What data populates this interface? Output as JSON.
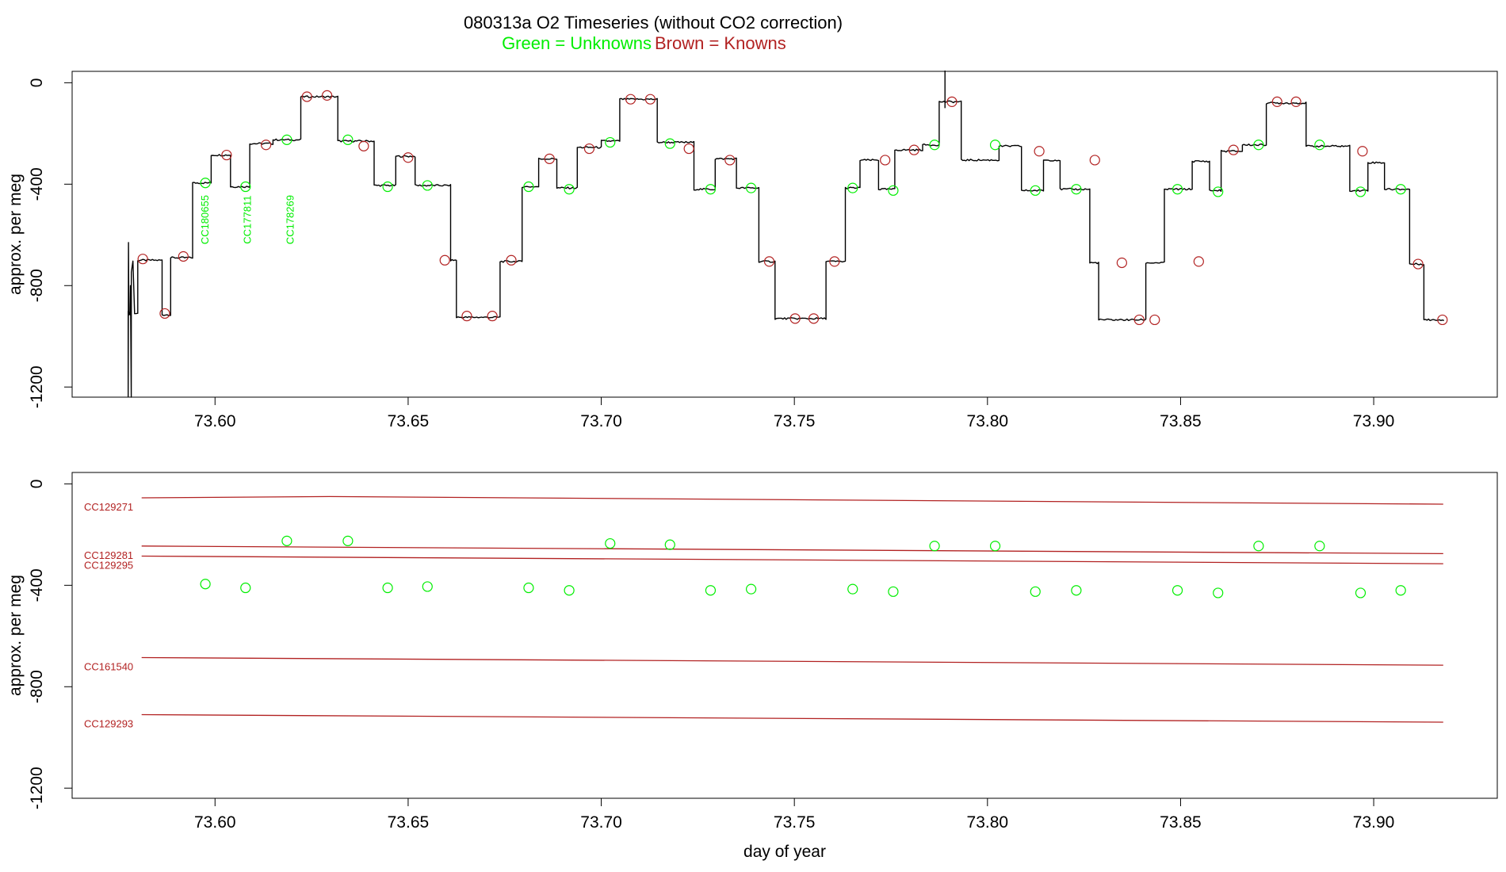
{
  "title": "080313a   O2 Timeseries (without CO2 correction)",
  "subtitle_green": "Green = Unknowns",
  "subtitle_brown": "Brown = Knowns",
  "colors": {
    "unknown": "#00ee00",
    "known": "#b22222",
    "trace": "#000000"
  },
  "chart_data": [
    {
      "type": "line",
      "panel": "top",
      "xlabel": "",
      "ylabel": "approx. per meg",
      "xlim": [
        73.563,
        73.932
      ],
      "ylim": [
        -1240,
        45
      ],
      "xticks": [
        73.6,
        73.65,
        73.7,
        73.75,
        73.8,
        73.85,
        73.9
      ],
      "xtick_labels": [
        "73.60",
        "73.65",
        "73.70",
        "73.75",
        "73.80",
        "73.85",
        "73.90"
      ],
      "yticks": [
        0,
        -400,
        -800,
        -1200
      ],
      "ytick_labels": [
        "0",
        "-400",
        "-800",
        "-1200"
      ],
      "trace": {
        "name": "O2 trace",
        "levels": [
          [
            73.5775,
            73.58,
            -910
          ],
          [
            73.58,
            73.5863,
            -700
          ],
          [
            73.5863,
            73.5885,
            -915
          ],
          [
            73.5885,
            73.5942,
            -690
          ],
          [
            73.5942,
            73.599,
            -395
          ],
          [
            73.599,
            73.604,
            -285
          ],
          [
            73.604,
            73.609,
            -410
          ],
          [
            73.609,
            73.615,
            -240
          ],
          [
            73.615,
            73.6222,
            -225
          ],
          [
            73.6222,
            73.6318,
            -55
          ],
          [
            73.6318,
            73.6412,
            -230
          ],
          [
            73.6412,
            73.6468,
            -405
          ],
          [
            73.6468,
            73.6518,
            -290
          ],
          [
            73.6518,
            73.661,
            -405
          ],
          [
            73.661,
            73.6625,
            -700
          ],
          [
            73.6625,
            73.6738,
            -925
          ],
          [
            73.6738,
            73.6795,
            -705
          ],
          [
            73.6795,
            73.6838,
            -410
          ],
          [
            73.6838,
            73.6885,
            -300
          ],
          [
            73.6885,
            73.6938,
            -415
          ],
          [
            73.6938,
            73.7,
            -255
          ],
          [
            73.7,
            73.7048,
            -230
          ],
          [
            73.7048,
            73.7145,
            -65
          ],
          [
            73.7145,
            73.724,
            -235
          ],
          [
            73.724,
            73.7295,
            -420
          ],
          [
            73.7295,
            73.735,
            -300
          ],
          [
            73.735,
            73.7408,
            -415
          ],
          [
            73.7408,
            73.745,
            -705
          ],
          [
            73.745,
            73.7582,
            -930
          ],
          [
            73.7582,
            73.7632,
            -705
          ],
          [
            73.7632,
            73.767,
            -415
          ],
          [
            73.767,
            73.7718,
            -305
          ],
          [
            73.7718,
            73.776,
            -420
          ],
          [
            73.776,
            73.7832,
            -265
          ],
          [
            73.7832,
            73.7875,
            -245
          ],
          [
            73.7875,
            73.7932,
            -75
          ],
          [
            73.7932,
            73.803,
            -305
          ],
          [
            73.803,
            73.8088,
            -250
          ],
          [
            73.8088,
            73.8145,
            -425
          ],
          [
            73.8145,
            73.8188,
            -305
          ],
          [
            73.8188,
            73.8265,
            -420
          ],
          [
            73.8265,
            73.8288,
            -710
          ],
          [
            73.8288,
            73.841,
            -935
          ],
          [
            73.841,
            73.8458,
            -710
          ],
          [
            73.8458,
            73.853,
            -420
          ],
          [
            73.853,
            73.8575,
            -310
          ],
          [
            73.8575,
            73.8605,
            -425
          ],
          [
            73.8605,
            73.866,
            -270
          ],
          [
            73.866,
            73.8722,
            -245
          ],
          [
            73.8722,
            73.8825,
            -80
          ],
          [
            73.8825,
            73.8938,
            -250
          ],
          [
            73.8938,
            73.8985,
            -425
          ],
          [
            73.8985,
            73.9028,
            -315
          ],
          [
            73.9028,
            73.9093,
            -420
          ],
          [
            73.9093,
            73.913,
            -715
          ],
          [
            73.913,
            73.9182,
            -935
          ]
        ]
      },
      "known_points": {
        "x": [
          73.5813,
          73.587,
          73.5918,
          73.603,
          73.6132,
          73.6238,
          73.629,
          73.6385,
          73.65,
          73.6595,
          73.6652,
          73.6718,
          73.6767,
          73.6866,
          73.6969,
          73.7076,
          73.7127,
          73.7227,
          73.7333,
          73.7435,
          73.7502,
          73.755,
          73.7604,
          73.7735,
          73.781,
          73.7908,
          73.8134,
          73.8278,
          73.8348,
          73.8393,
          73.8433,
          73.8547,
          73.8637,
          73.875,
          73.8799,
          73.8971,
          73.9115,
          73.9178
        ],
        "y": [
          -695,
          -910,
          -685,
          -285,
          -245,
          -55,
          -50,
          -250,
          -295,
          -700,
          -920,
          -920,
          -700,
          -300,
          -260,
          -65,
          -65,
          -260,
          -305,
          -705,
          -930,
          -930,
          -705,
          -305,
          -265,
          -75,
          -270,
          -305,
          -710,
          -935,
          -935,
          -705,
          -265,
          -75,
          -75,
          -270,
          -715,
          -935
        ]
      },
      "unknown_points": {
        "x": [
          73.5975,
          73.6079,
          73.6186,
          73.6344,
          73.6447,
          73.655,
          73.6812,
          73.6917,
          73.7023,
          73.7178,
          73.7283,
          73.7388,
          73.7651,
          73.7756,
          73.7863,
          73.802,
          73.8124,
          73.823,
          73.8492,
          73.8597,
          73.8702,
          73.886,
          73.8966,
          73.907
        ],
        "y": [
          -395,
          -410,
          -225,
          -225,
          -410,
          -405,
          -410,
          -420,
          -235,
          -240,
          -420,
          -415,
          -415,
          -425,
          -245,
          -245,
          -425,
          -420,
          -420,
          -430,
          -245,
          -245,
          -430,
          -420
        ]
      },
      "annotations": [
        {
          "text": "CC180655",
          "x": 73.5975
        },
        {
          "text": "CC177811",
          "x": 73.6085
        },
        {
          "text": "CC178269",
          "x": 73.6195
        }
      ]
    },
    {
      "type": "line",
      "panel": "bottom",
      "xlabel": "day of year",
      "ylabel": "approx. per meg",
      "xlim": [
        73.563,
        73.932
      ],
      "ylim": [
        -1240,
        45
      ],
      "xticks": [
        73.6,
        73.65,
        73.7,
        73.75,
        73.8,
        73.85,
        73.9
      ],
      "xtick_labels": [
        "73.60",
        "73.65",
        "73.70",
        "73.75",
        "73.80",
        "73.85",
        "73.90"
      ],
      "yticks": [
        0,
        -400,
        -800,
        -1200
      ],
      "ytick_labels": [
        "0",
        "-400",
        "-800",
        "-1200"
      ],
      "series": [
        {
          "name": "CC129271",
          "x": [
            73.581,
            73.6297,
            73.918
          ],
          "y": [
            -55,
            -50,
            -80
          ]
        },
        {
          "name": "CC129281",
          "x": [
            73.581,
            73.918
          ],
          "y": [
            -245,
            -275
          ]
        },
        {
          "name": "CC129295",
          "x": [
            73.581,
            73.918
          ],
          "y": [
            -285,
            -315
          ]
        },
        {
          "name": "CC161540",
          "x": [
            73.581,
            73.918
          ],
          "y": [
            -685,
            -715
          ]
        },
        {
          "name": "CC129293",
          "x": [
            73.581,
            73.918
          ],
          "y": [
            -910,
            -940
          ]
        }
      ],
      "unknown_points": {
        "x": [
          73.5975,
          73.6079,
          73.6186,
          73.6344,
          73.6447,
          73.655,
          73.6812,
          73.6917,
          73.7023,
          73.7178,
          73.7283,
          73.7388,
          73.7651,
          73.7756,
          73.7863,
          73.802,
          73.8124,
          73.823,
          73.8492,
          73.8597,
          73.8702,
          73.886,
          73.8966,
          73.907
        ],
        "y": [
          -395,
          -410,
          -225,
          -225,
          -410,
          -405,
          -410,
          -420,
          -235,
          -240,
          -420,
          -415,
          -415,
          -425,
          -245,
          -245,
          -425,
          -420,
          -420,
          -430,
          -245,
          -245,
          -430,
          -420
        ]
      }
    }
  ]
}
